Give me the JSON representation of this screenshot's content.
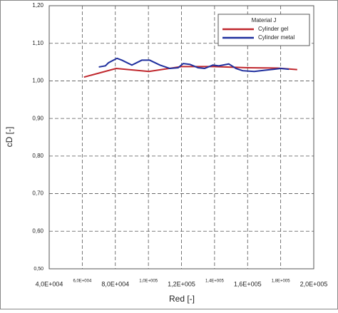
{
  "chart_data": {
    "type": "line",
    "xlabel": "Red [-]",
    "ylabel": "cD [-]",
    "legend_title": "Material J",
    "legend": "upper right",
    "grid": true,
    "xlim": [
      40000,
      200000
    ],
    "xticks": [
      {
        "value": 40000,
        "label": "4,0E+004"
      },
      {
        "value": 60000,
        "label": "6,0E+004"
      },
      {
        "value": 80000,
        "label": "8,0E+004"
      },
      {
        "value": 100000,
        "label": "1,0E+005"
      },
      {
        "value": 120000,
        "label": "1,2E+005"
      },
      {
        "value": 140000,
        "label": "1,4E+005"
      },
      {
        "value": 160000,
        "label": "1,6E+005"
      },
      {
        "value": 180000,
        "label": "1,8E+005"
      },
      {
        "value": 200000,
        "label": "2,0E+005"
      }
    ],
    "ylim": [
      0.5,
      1.2
    ],
    "yticks": [
      {
        "value": 0.5,
        "label": "0,50"
      },
      {
        "value": 0.6,
        "label": "0,60"
      },
      {
        "value": 0.7,
        "label": "0,70"
      },
      {
        "value": 0.8,
        "label": "0,80"
      },
      {
        "value": 0.9,
        "label": "0,90"
      },
      {
        "value": 1.0,
        "label": "1,00"
      },
      {
        "value": 1.1,
        "label": "1,10"
      },
      {
        "value": 1.2,
        "label": "1,20"
      }
    ],
    "series": [
      {
        "name": "Cylinder gel",
        "color": "#c0272d",
        "x": [
          61000,
          80500,
          100300,
          120000,
          139500,
          160000,
          178000,
          190000
        ],
        "values": [
          1.01,
          1.033,
          1.025,
          1.038,
          1.038,
          1.035,
          1.034,
          1.03
        ]
      },
      {
        "name": "Cylinder metal",
        "color": "#1f2f9e",
        "x": [
          70000,
          74000,
          75800,
          81000,
          84000,
          90000,
          96000,
          100800,
          107000,
          113000,
          118000,
          121000,
          125000,
          130000,
          134000,
          139000,
          142600,
          148600,
          153000,
          157000,
          164000,
          170000,
          176000,
          180000,
          185000
        ],
        "values": [
          1.037,
          1.04,
          1.048,
          1.06,
          1.055,
          1.042,
          1.055,
          1.055,
          1.042,
          1.033,
          1.035,
          1.046,
          1.044,
          1.035,
          1.033,
          1.042,
          1.04,
          1.045,
          1.033,
          1.027,
          1.025,
          1.028,
          1.031,
          1.033,
          1.031
        ]
      }
    ]
  }
}
